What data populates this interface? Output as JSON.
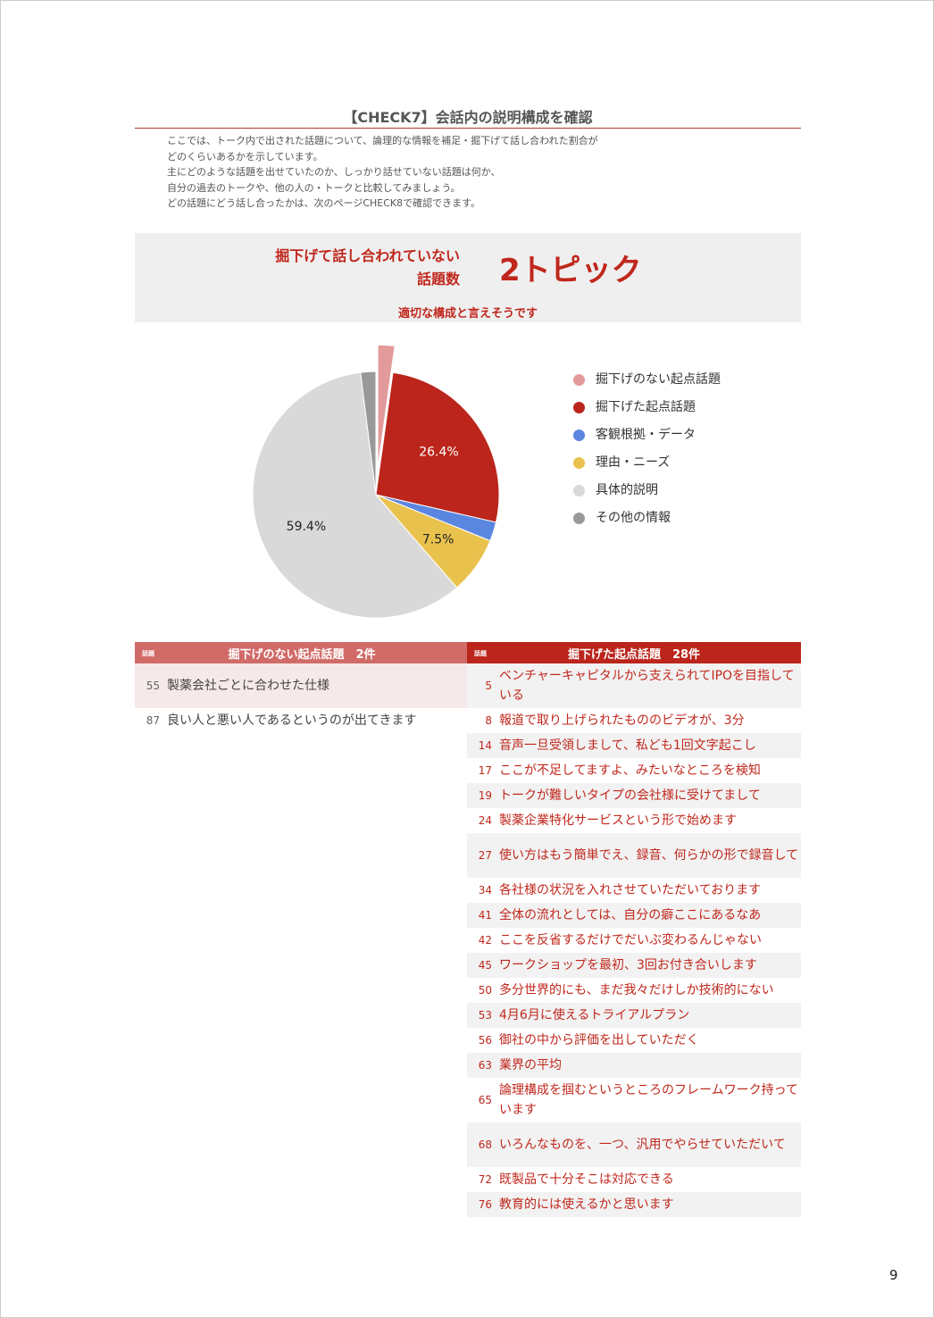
{
  "title": "【CHECK7】会話内の説明構成を確認",
  "intro": [
    "ここでは、トーク内で出された話題について、論理的な情報を補足・掘下げて話し合われた割合が",
    "どのくらいあるかを示しています。",
    "主にどのような話題を出せていたのか、しっかり話せていない話題は何か、",
    "自分の過去のトークや、他の人の・トークと比較してみましょう。",
    "どの話題にどう話し合ったかは、次のページCHECK8で確認できます。"
  ],
  "summary": {
    "label_line1": "掘下げて話し合われていない",
    "label_line2": "話題数",
    "value": "2トピック",
    "comment": "適切な構成と言えそうです"
  },
  "chart_data": {
    "type": "pie",
    "start": "top",
    "direction": "clockwise",
    "slices": [
      {
        "name": "掘下げのない起点話題",
        "value": 2.2,
        "color": "#e39a9a",
        "exploded": true,
        "label": ""
      },
      {
        "name": "掘下げた起点話題",
        "value": 26.4,
        "color": "#bb251b",
        "label": "26.4%"
      },
      {
        "name": "客観根拠・データ",
        "value": 2.5,
        "color": "#5b86e0",
        "label": ""
      },
      {
        "name": "理由・ニーズ",
        "value": 7.5,
        "color": "#e9c24e",
        "label": "7.5%"
      },
      {
        "name": "具体的説明",
        "value": 59.4,
        "color": "#d9d9d9",
        "label": "59.4%"
      },
      {
        "name": "その他の情報",
        "value": 2.0,
        "color": "#999999",
        "label": ""
      }
    ],
    "legend": [
      "掘下げのない起点話題",
      "掘下げた起点話題",
      "客観根拠・データ",
      "理由・ニーズ",
      "具体的説明",
      "その他の情報"
    ],
    "legend_position": "right"
  },
  "left_table": {
    "tag": "話題",
    "header": "掘下げのない起点話題　2件",
    "color": "#d16b68",
    "rows": [
      {
        "n": "55",
        "text": "製薬会社ごとに合わせた仕様"
      },
      {
        "n": "87",
        "text": "良い人と悪い人であるというのが出てきます"
      }
    ]
  },
  "right_table": {
    "tag": "話題",
    "header": "掘下げた起点話題　28件",
    "color": "#bb251b",
    "rows": [
      {
        "n": "5",
        "text": "ベンチャーキャピタルから支えられてIPOを目指している"
      },
      {
        "n": "8",
        "text": "報道で取り上げられたもののビデオが、3分"
      },
      {
        "n": "14",
        "text": "音声一旦受領しまして、私ども1回文字起こし"
      },
      {
        "n": "17",
        "text": "ここが不足してますよ、みたいなところを検知"
      },
      {
        "n": "19",
        "text": "トークが難しいタイプの会社様に受けてまして"
      },
      {
        "n": "24",
        "text": "製薬企業特化サービスという形で始めます"
      },
      {
        "n": "27",
        "text": "使い方はもう簡単でえ、録音、何らかの形で録音して"
      },
      {
        "n": "34",
        "text": "各社様の状況を入れさせていただいております"
      },
      {
        "n": "41",
        "text": "全体の流れとしては、自分の癖ここにあるなあ"
      },
      {
        "n": "42",
        "text": "ここを反省するだけでだいぶ変わるんじゃない"
      },
      {
        "n": "45",
        "text": "ワークショップを最初、3回お付き合いします"
      },
      {
        "n": "50",
        "text": "多分世界的にも、まだ我々だけしか技術的にない"
      },
      {
        "n": "53",
        "text": "4月6月に使えるトライアルプラン"
      },
      {
        "n": "56",
        "text": "御社の中から評価を出していただく"
      },
      {
        "n": "63",
        "text": "業界の平均"
      },
      {
        "n": "65",
        "text": "論理構成を掴むというところのフレームワーク持っています"
      },
      {
        "n": "68",
        "text": "いろんなものを、一つ、汎用でやらせていただいて"
      },
      {
        "n": "72",
        "text": "既製品で十分そこは対応できる"
      },
      {
        "n": "76",
        "text": "教育的には使えるかと思います"
      }
    ]
  },
  "page_number": "9"
}
